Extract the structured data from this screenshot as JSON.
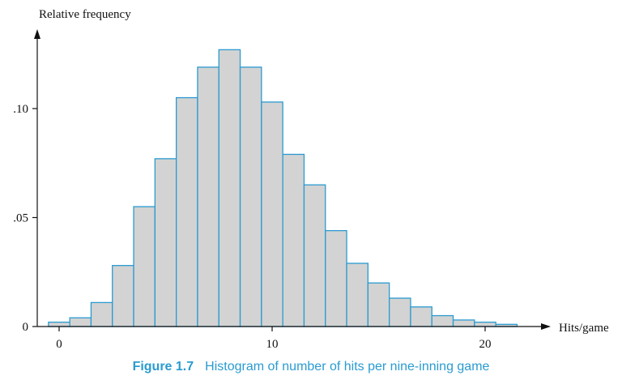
{
  "chart_data": {
    "type": "bar",
    "ylabel": "Relative frequency",
    "xlabel": "Hits/game",
    "x_ticks": [
      0,
      10,
      20
    ],
    "x_tick_labels": [
      "0",
      "10",
      "20"
    ],
    "y_ticks": [
      0,
      0.05,
      0.1
    ],
    "y_tick_labels": [
      "0",
      ".05",
      ".10"
    ],
    "xlim": [
      -1,
      22
    ],
    "ylim": [
      0,
      0.13
    ],
    "grid": false,
    "categories": [
      0,
      1,
      2,
      3,
      4,
      5,
      6,
      7,
      8,
      9,
      10,
      11,
      12,
      13,
      14,
      15,
      16,
      17,
      18,
      19,
      20,
      21
    ],
    "values": [
      0.002,
      0.004,
      0.011,
      0.028,
      0.055,
      0.077,
      0.105,
      0.119,
      0.127,
      0.119,
      0.103,
      0.079,
      0.065,
      0.044,
      0.029,
      0.02,
      0.013,
      0.009,
      0.005,
      0.003,
      0.002,
      0.001
    ],
    "bar_fill": "#d3d3d3",
    "bar_stroke": "#2a9bd0"
  },
  "caption": {
    "figure_number": "Figure 1.7",
    "text": "Histogram of number of hits per nine-inning game"
  },
  "colors": {
    "axis": "#111111",
    "caption": "#2a9bd0"
  }
}
